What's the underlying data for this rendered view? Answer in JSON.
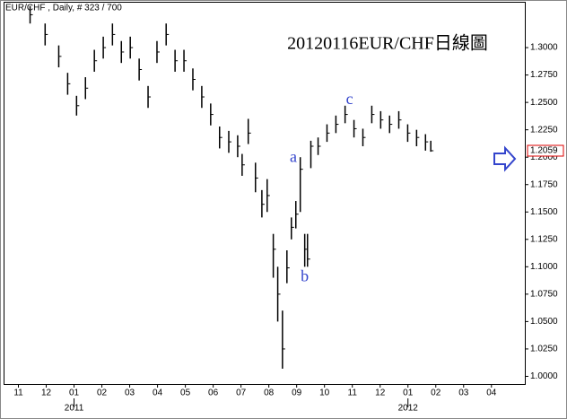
{
  "chart_data": {
    "type": "ohlc",
    "header": "EUR/CHF , Daily, # 323 / 700",
    "title": "20120116EUR/CHF日線圖",
    "color": "#000000",
    "x": [
      0.42,
      0.96,
      1.45,
      1.77,
      2.09,
      2.41,
      2.73,
      3.05,
      3.38,
      3.7,
      4.02,
      4.34,
      4.66,
      4.98,
      5.31,
      5.63,
      5.95,
      6.27,
      6.59,
      6.91,
      7.23,
      7.56,
      7.88,
      8.04,
      8.26,
      8.52,
      8.75,
      8.94,
      9.16,
      9.32,
      9.49,
      9.65,
      9.81,
      9.97,
      10.13,
      10.29,
      10.39,
      10.51,
      10.77,
      11.09,
      11.41,
      11.74,
      12.06,
      12.38,
      12.7,
      13.02,
      13.34,
      13.67,
      13.99,
      14.31,
      14.63,
      14.82
    ],
    "high": [
      1.338,
      1.322,
      1.302,
      1.277,
      1.256,
      1.273,
      1.298,
      1.31,
      1.322,
      1.306,
      1.31,
      1.29,
      1.265,
      1.306,
      1.322,
      1.298,
      1.298,
      1.281,
      1.265,
      1.249,
      1.228,
      1.224,
      1.22,
      1.203,
      1.235,
      1.195,
      1.17,
      1.18,
      1.13,
      1.1,
      1.06,
      1.115,
      1.145,
      1.16,
      1.2,
      1.13,
      1.13,
      1.215,
      1.218,
      1.23,
      1.238,
      1.247,
      1.234,
      1.226,
      1.247,
      1.242,
      1.238,
      1.242,
      1.23,
      1.225,
      1.221,
      1.215
    ],
    "low": [
      1.322,
      1.302,
      1.282,
      1.257,
      1.238,
      1.253,
      1.278,
      1.29,
      1.302,
      1.286,
      1.29,
      1.27,
      1.245,
      1.286,
      1.302,
      1.278,
      1.278,
      1.261,
      1.245,
      1.229,
      1.208,
      1.204,
      1.2,
      1.183,
      1.212,
      1.168,
      1.145,
      1.15,
      1.09,
      1.05,
      1.007,
      1.085,
      1.125,
      1.135,
      1.15,
      1.1,
      1.1,
      1.19,
      1.202,
      1.214,
      1.222,
      1.231,
      1.218,
      1.21,
      1.231,
      1.226,
      1.222,
      1.226,
      1.214,
      1.21,
      1.206,
      1.205
    ],
    "close": [
      1.33,
      1.312,
      1.292,
      1.267,
      1.247,
      1.263,
      1.288,
      1.3,
      1.312,
      1.296,
      1.3,
      1.28,
      1.255,
      1.296,
      1.312,
      1.288,
      1.288,
      1.271,
      1.255,
      1.239,
      1.218,
      1.214,
      1.21,
      1.193,
      1.222,
      1.181,
      1.157,
      1.165,
      1.116,
      1.075,
      1.025,
      1.099,
      1.136,
      1.148,
      1.189,
      1.116,
      1.107,
      1.21,
      1.21,
      1.222,
      1.23,
      1.239,
      1.226,
      1.218,
      1.239,
      1.234,
      1.23,
      1.234,
      1.222,
      1.218,
      1.214,
      1.2059
    ],
    "last_price": {
      "value": 1.2059,
      "label": "1.2059"
    },
    "annotations": [
      {
        "text": "a",
        "x": 9.88,
        "y": 1.199
      },
      {
        "text": "b",
        "x": 10.29,
        "y": 1.09
      },
      {
        "text": "c",
        "x": 11.9,
        "y": 1.252
      }
    ],
    "xlim": [
      -0.5,
      18.2
    ],
    "ylim": [
      0.993,
      1.341
    ],
    "xticks": [
      {
        "value": 0,
        "label": "11"
      },
      {
        "value": 1,
        "label": "12"
      },
      {
        "value": 2,
        "label": "01"
      },
      {
        "value": 3,
        "label": "02"
      },
      {
        "value": 4,
        "label": "03"
      },
      {
        "value": 5,
        "label": "04"
      },
      {
        "value": 6,
        "label": "05"
      },
      {
        "value": 7,
        "label": "06"
      },
      {
        "value": 8,
        "label": "07"
      },
      {
        "value": 9,
        "label": "08"
      },
      {
        "value": 10,
        "label": "09"
      },
      {
        "value": 11,
        "label": "10"
      },
      {
        "value": 12,
        "label": "11"
      },
      {
        "value": 13,
        "label": "12"
      },
      {
        "value": 14,
        "label": "01"
      },
      {
        "value": 15,
        "label": "02"
      },
      {
        "value": 16,
        "label": "03"
      },
      {
        "value": 17,
        "label": "04"
      }
    ],
    "year_labels": [
      {
        "value": 2,
        "label": "2011"
      },
      {
        "value": 14,
        "label": "2012"
      }
    ],
    "yticks": [
      {
        "value": 1.0,
        "label": "1.0000"
      },
      {
        "value": 1.025,
        "label": "1.0250"
      },
      {
        "value": 1.05,
        "label": "1.0500"
      },
      {
        "value": 1.075,
        "label": "1.0750"
      },
      {
        "value": 1.1,
        "label": "1.1000"
      },
      {
        "value": 1.125,
        "label": "1.1250"
      },
      {
        "value": 1.15,
        "label": "1.1500"
      },
      {
        "value": 1.175,
        "label": "1.1750"
      },
      {
        "value": 1.2,
        "label": "1.2000"
      },
      {
        "value": 1.225,
        "label": "1.2250"
      },
      {
        "value": 1.25,
        "label": "1.2500"
      },
      {
        "value": 1.275,
        "label": "1.2750"
      },
      {
        "value": 1.3,
        "label": "1.3000"
      }
    ]
  }
}
